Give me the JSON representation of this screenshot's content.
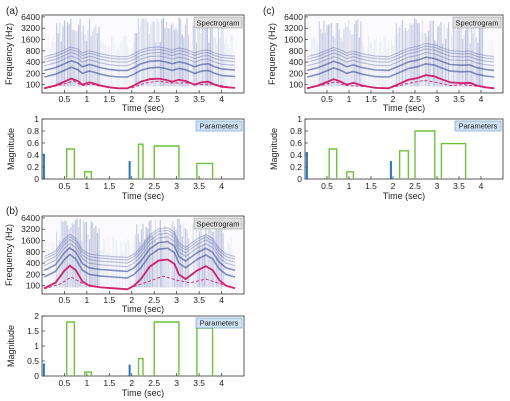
{
  "panel_labels": [
    "(a)",
    "(b)",
    "(c)"
  ],
  "spectro_label": "Spectrogram",
  "param_label": "Parameters",
  "colors": {
    "contour": "#d0206e",
    "bar": "#6fc23a",
    "impulse": "#1f78c8",
    "spec": "#2a3d8f",
    "tag_bg": "#cfe2f5",
    "tag_bg_spec": "#dcdcdc"
  },
  "chart_data": [
    {
      "type": "spectrogram",
      "panel": "(a)",
      "xlabel": "Time (sec)",
      "ylabel": "Frequency (Hz)",
      "xlim": [
        0,
        4.5
      ],
      "yticks": [
        "100",
        "200",
        "400",
        "800",
        "1600",
        "3200",
        "6400"
      ],
      "xticks": [
        "0.5",
        "1",
        "1.5",
        "2",
        "2.5",
        "3",
        "3.5",
        "4"
      ],
      "log_scale": true,
      "f0_contour": [
        [
          0.05,
          80
        ],
        [
          0.3,
          95
        ],
        [
          0.5,
          120
        ],
        [
          0.65,
          145
        ],
        [
          0.8,
          125
        ],
        [
          0.9,
          100
        ],
        [
          1.05,
          115
        ],
        [
          1.15,
          108
        ],
        [
          1.3,
          95
        ],
        [
          1.5,
          85
        ],
        [
          1.7,
          80
        ],
        [
          1.9,
          80
        ],
        [
          2.05,
          95
        ],
        [
          2.2,
          120
        ],
        [
          2.4,
          140
        ],
        [
          2.6,
          145
        ],
        [
          2.75,
          135
        ],
        [
          2.9,
          120
        ],
        [
          3.05,
          135
        ],
        [
          3.2,
          125
        ],
        [
          3.4,
          100
        ],
        [
          3.55,
          115
        ],
        [
          3.7,
          120
        ],
        [
          3.85,
          100
        ],
        [
          4.0,
          88
        ],
        [
          4.3,
          82
        ]
      ],
      "f0_base": [
        [
          0.05,
          78
        ],
        [
          0.5,
          105
        ],
        [
          0.7,
          125
        ],
        [
          0.9,
          95
        ],
        [
          1.1,
          105
        ],
        [
          1.3,
          90
        ],
        [
          1.7,
          80
        ],
        [
          2.0,
          82
        ],
        [
          2.3,
          110
        ],
        [
          2.6,
          125
        ],
        [
          2.9,
          110
        ],
        [
          3.2,
          112
        ],
        [
          3.5,
          100
        ],
        [
          3.8,
          105
        ],
        [
          4.3,
          80
        ]
      ]
    },
    {
      "type": "bar",
      "panel": "(a)",
      "xlabel": "Time (sec)",
      "ylabel": "Magnitude",
      "xlim": [
        0,
        4.5
      ],
      "ylim": [
        0,
        1
      ],
      "yticks": [
        "0",
        "0.2",
        "0.4",
        "0.6",
        "0.8",
        "1"
      ],
      "xticks": [
        "0.5",
        "1",
        "1.5",
        "2",
        "2.5",
        "3",
        "3.5",
        "4"
      ],
      "impulses": [
        [
          0.02,
          0.42
        ],
        [
          1.93,
          0.3
        ]
      ],
      "steps": [
        [
          0.55,
          0.72,
          0.5
        ],
        [
          0.95,
          1.1,
          0.12
        ],
        [
          2.15,
          2.25,
          0.58
        ],
        [
          2.5,
          3.05,
          0.55
        ],
        [
          3.45,
          3.8,
          0.26
        ]
      ]
    },
    {
      "type": "spectrogram",
      "panel": "(b)",
      "xlabel": "Time (sec)",
      "ylabel": "Frequency (Hz)",
      "xlim": [
        0,
        4.5
      ],
      "yticks": [
        "100",
        "200",
        "400",
        "800",
        "1600",
        "3200",
        "6400"
      ],
      "xticks": [
        "0.5",
        "1",
        "1.5",
        "2",
        "2.5",
        "3",
        "3.5",
        "4"
      ],
      "log_scale": true,
      "f0_contour": [
        [
          0.05,
          85
        ],
        [
          0.3,
          120
        ],
        [
          0.5,
          250
        ],
        [
          0.62,
          340
        ],
        [
          0.75,
          260
        ],
        [
          0.9,
          130
        ],
        [
          1.05,
          100
        ],
        [
          1.3,
          90
        ],
        [
          1.6,
          85
        ],
        [
          1.9,
          80
        ],
        [
          2.05,
          100
        ],
        [
          2.2,
          150
        ],
        [
          2.4,
          320
        ],
        [
          2.6,
          470
        ],
        [
          2.8,
          500
        ],
        [
          2.95,
          380
        ],
        [
          3.05,
          200
        ],
        [
          3.2,
          150
        ],
        [
          3.45,
          250
        ],
        [
          3.65,
          330
        ],
        [
          3.8,
          260
        ],
        [
          3.95,
          140
        ],
        [
          4.1,
          100
        ],
        [
          4.3,
          85
        ]
      ],
      "f0_base": [
        [
          0.05,
          82
        ],
        [
          0.4,
          110
        ],
        [
          0.65,
          170
        ],
        [
          0.9,
          115
        ],
        [
          1.3,
          90
        ],
        [
          1.9,
          82
        ],
        [
          2.3,
          120
        ],
        [
          2.7,
          180
        ],
        [
          3.0,
          140
        ],
        [
          3.3,
          120
        ],
        [
          3.65,
          150
        ],
        [
          4.0,
          110
        ],
        [
          4.3,
          85
        ]
      ]
    },
    {
      "type": "bar",
      "panel": "(b)",
      "xlabel": "Time (sec)",
      "ylabel": "Magnitude",
      "xlim": [
        0,
        4.5
      ],
      "ylim": [
        0,
        2
      ],
      "yticks": [
        "0",
        "0.5",
        "1",
        "1.5",
        "2"
      ],
      "xticks": [
        "0.5",
        "1",
        "1.5",
        "2",
        "2.5",
        "3",
        "3.5",
        "4"
      ],
      "impulses": [
        [
          0.02,
          0.42
        ],
        [
          1.93,
          0.38
        ]
      ],
      "steps": [
        [
          0.55,
          0.72,
          1.8
        ],
        [
          0.95,
          1.1,
          0.13
        ],
        [
          2.15,
          2.25,
          0.58
        ],
        [
          2.5,
          3.05,
          1.8
        ],
        [
          3.45,
          3.8,
          1.6
        ]
      ]
    },
    {
      "type": "spectrogram",
      "panel": "(c)",
      "xlabel": "Time (sec)",
      "ylabel": "Frequency (Hz)",
      "xlim": [
        0,
        4.5
      ],
      "yticks": [
        "100",
        "200",
        "400",
        "800",
        "1600",
        "3200",
        "6400"
      ],
      "xticks": [
        "0.5",
        "1",
        "1.5",
        "2",
        "2.5",
        "3",
        "3.5",
        "4"
      ],
      "log_scale": true,
      "f0_contour": [
        [
          0.05,
          80
        ],
        [
          0.3,
          95
        ],
        [
          0.5,
          118
        ],
        [
          0.65,
          140
        ],
        [
          0.8,
          122
        ],
        [
          0.95,
          100
        ],
        [
          1.1,
          112
        ],
        [
          1.3,
          95
        ],
        [
          1.6,
          82
        ],
        [
          1.9,
          80
        ],
        [
          2.1,
          100
        ],
        [
          2.35,
          135
        ],
        [
          2.55,
          150
        ],
        [
          2.75,
          180
        ],
        [
          2.95,
          165
        ],
        [
          3.1,
          140
        ],
        [
          3.3,
          115
        ],
        [
          3.55,
          110
        ],
        [
          3.75,
          112
        ],
        [
          3.9,
          95
        ],
        [
          4.1,
          85
        ],
        [
          4.3,
          80
        ]
      ],
      "f0_base": [
        [
          0.05,
          78
        ],
        [
          0.5,
          105
        ],
        [
          0.7,
          120
        ],
        [
          0.9,
          95
        ],
        [
          1.3,
          90
        ],
        [
          1.9,
          80
        ],
        [
          2.3,
          105
        ],
        [
          2.7,
          130
        ],
        [
          3.0,
          115
        ],
        [
          3.3,
          95
        ],
        [
          3.6,
          100
        ],
        [
          4.3,
          80
        ]
      ]
    },
    {
      "type": "bar",
      "panel": "(c)",
      "xlabel": "Time (sec)",
      "ylabel": "Magnitude",
      "xlim": [
        0,
        4.5
      ],
      "ylim": [
        0,
        1
      ],
      "yticks": [
        "0",
        "0.2",
        "0.4",
        "0.6",
        "0.8",
        "1"
      ],
      "xticks": [
        "0.5",
        "1",
        "1.5",
        "2",
        "2.5",
        "3",
        "3.5",
        "4"
      ],
      "impulses": [
        [
          0.02,
          0.45
        ],
        [
          1.93,
          0.3
        ]
      ],
      "steps": [
        [
          0.55,
          0.72,
          0.5
        ],
        [
          0.95,
          1.1,
          0.12
        ],
        [
          2.15,
          2.35,
          0.47
        ],
        [
          2.5,
          2.95,
          0.8
        ],
        [
          3.1,
          3.65,
          0.59
        ]
      ]
    }
  ]
}
